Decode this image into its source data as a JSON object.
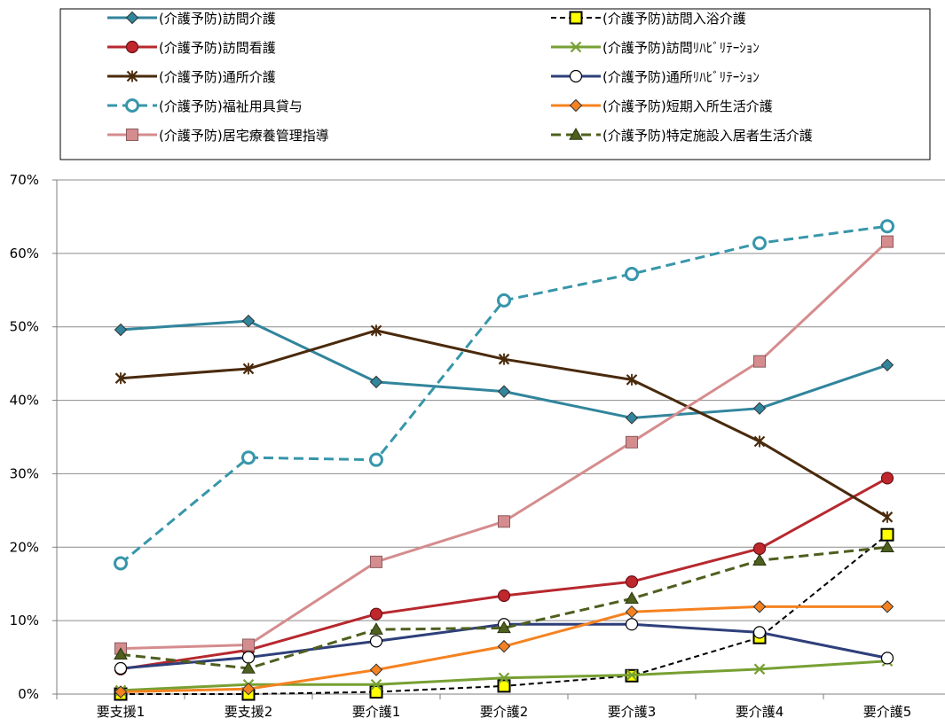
{
  "chart_data": {
    "type": "line",
    "categories": [
      "要支援1",
      "要支援2",
      "要介護1",
      "要介護2",
      "要介護3",
      "要介護4",
      "要介護5"
    ],
    "ylim": [
      0,
      70
    ],
    "yticks": [
      0,
      10,
      20,
      30,
      40,
      50,
      60,
      70
    ],
    "ytick_labels": [
      "0%",
      "10%",
      "20%",
      "30%",
      "40%",
      "50%",
      "60%",
      "70%"
    ],
    "grid": "horizontal",
    "legend_position": "top",
    "series": [
      {
        "name": "(介護予防)訪問介護",
        "values": [
          49.6,
          50.8,
          42.5,
          41.2,
          37.6,
          38.9,
          44.8
        ],
        "color": "#31859C",
        "dash": "solid",
        "marker": "diamond",
        "marker_fill": "#31859C"
      },
      {
        "name": "(介護予防)訪問入浴介護",
        "values": [
          0.0,
          0.0,
          0.3,
          1.1,
          2.5,
          7.7,
          21.7
        ],
        "color": "#000000",
        "dash": "dashed",
        "marker": "square",
        "marker_fill": "#FFFF00"
      },
      {
        "name": "(介護予防)訪問看護",
        "values": [
          3.4,
          6.0,
          10.9,
          13.4,
          15.3,
          19.8,
          29.4
        ],
        "color": "#B7282E",
        "dash": "solid",
        "marker": "circle",
        "marker_fill": "#C0272D"
      },
      {
        "name": "(介護予防)訪問ﾘﾊﾋﾞﾘﾃｰｼｮﾝ",
        "values": [
          0.5,
          1.3,
          1.3,
          2.2,
          2.6,
          3.4,
          4.5
        ],
        "color": "#77A033",
        "dash": "solid",
        "marker": "x",
        "marker_fill": "#77A033"
      },
      {
        "name": "(介護予防)通所介護",
        "values": [
          43.0,
          44.3,
          49.5,
          45.6,
          42.8,
          34.4,
          24.1
        ],
        "color": "#4A2A0C",
        "dash": "solid",
        "marker": "star",
        "marker_fill": "#4A2A0C"
      },
      {
        "name": "(介護予防)通所ﾘﾊﾋﾞﾘﾃｰｼｮﾝ",
        "values": [
          3.5,
          5.0,
          7.2,
          9.5,
          9.5,
          8.4,
          4.9
        ],
        "color": "#2E3F7A",
        "dash": "solid",
        "marker": "circle",
        "marker_fill": "#FFFFFF"
      },
      {
        "name": "(介護予防)福祉用具貸与",
        "values": [
          17.8,
          32.2,
          31.9,
          53.6,
          57.2,
          61.4,
          63.7
        ],
        "color": "#3796AA",
        "dash": "dashed",
        "marker": "circle",
        "marker_fill": "#FFFFFF"
      },
      {
        "name": "(介護予防)短期入所生活介護",
        "values": [
          0.3,
          0.7,
          3.3,
          6.5,
          11.2,
          11.9,
          11.9
        ],
        "color": "#F58220",
        "dash": "solid",
        "marker": "diamond",
        "marker_fill": "#F58220"
      },
      {
        "name": "(介護予防)居宅療養管理指導",
        "values": [
          6.2,
          6.7,
          18.0,
          23.5,
          34.3,
          45.3,
          61.6
        ],
        "color": "#D58C8E",
        "dash": "solid",
        "marker": "square",
        "marker_fill": "#D58C8E"
      },
      {
        "name": "(介護予防)特定施設入居者生活介護",
        "values": [
          5.4,
          3.5,
          8.8,
          9.0,
          13.0,
          18.2,
          20.0
        ],
        "color": "#4E5F1E",
        "dash": "dashed",
        "marker": "triangle",
        "marker_fill": "#4E5F1E"
      }
    ]
  }
}
